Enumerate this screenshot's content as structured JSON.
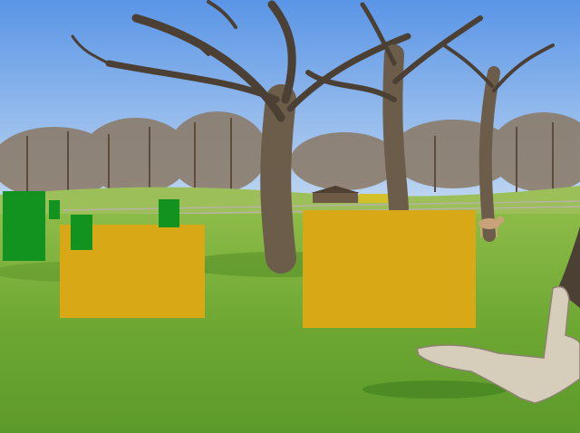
{
  "scene": {
    "description_tag": "park-with-trees",
    "colors": {
      "sky_top": "#5a95e6",
      "sky_bottom": "#b9d3f2",
      "grass_light": "#7fb33a",
      "grass_dark": "#5d9a2a",
      "tree_bark": "#6c5d4a",
      "branch": "#4b4033",
      "distant_trees": "#8a7864",
      "driftwood": "#d7cdbb",
      "overlay_amber": "#d9a816",
      "overlay_green": "#12931f"
    },
    "overlays": {
      "amber_count": 2,
      "green_count": 4
    }
  }
}
